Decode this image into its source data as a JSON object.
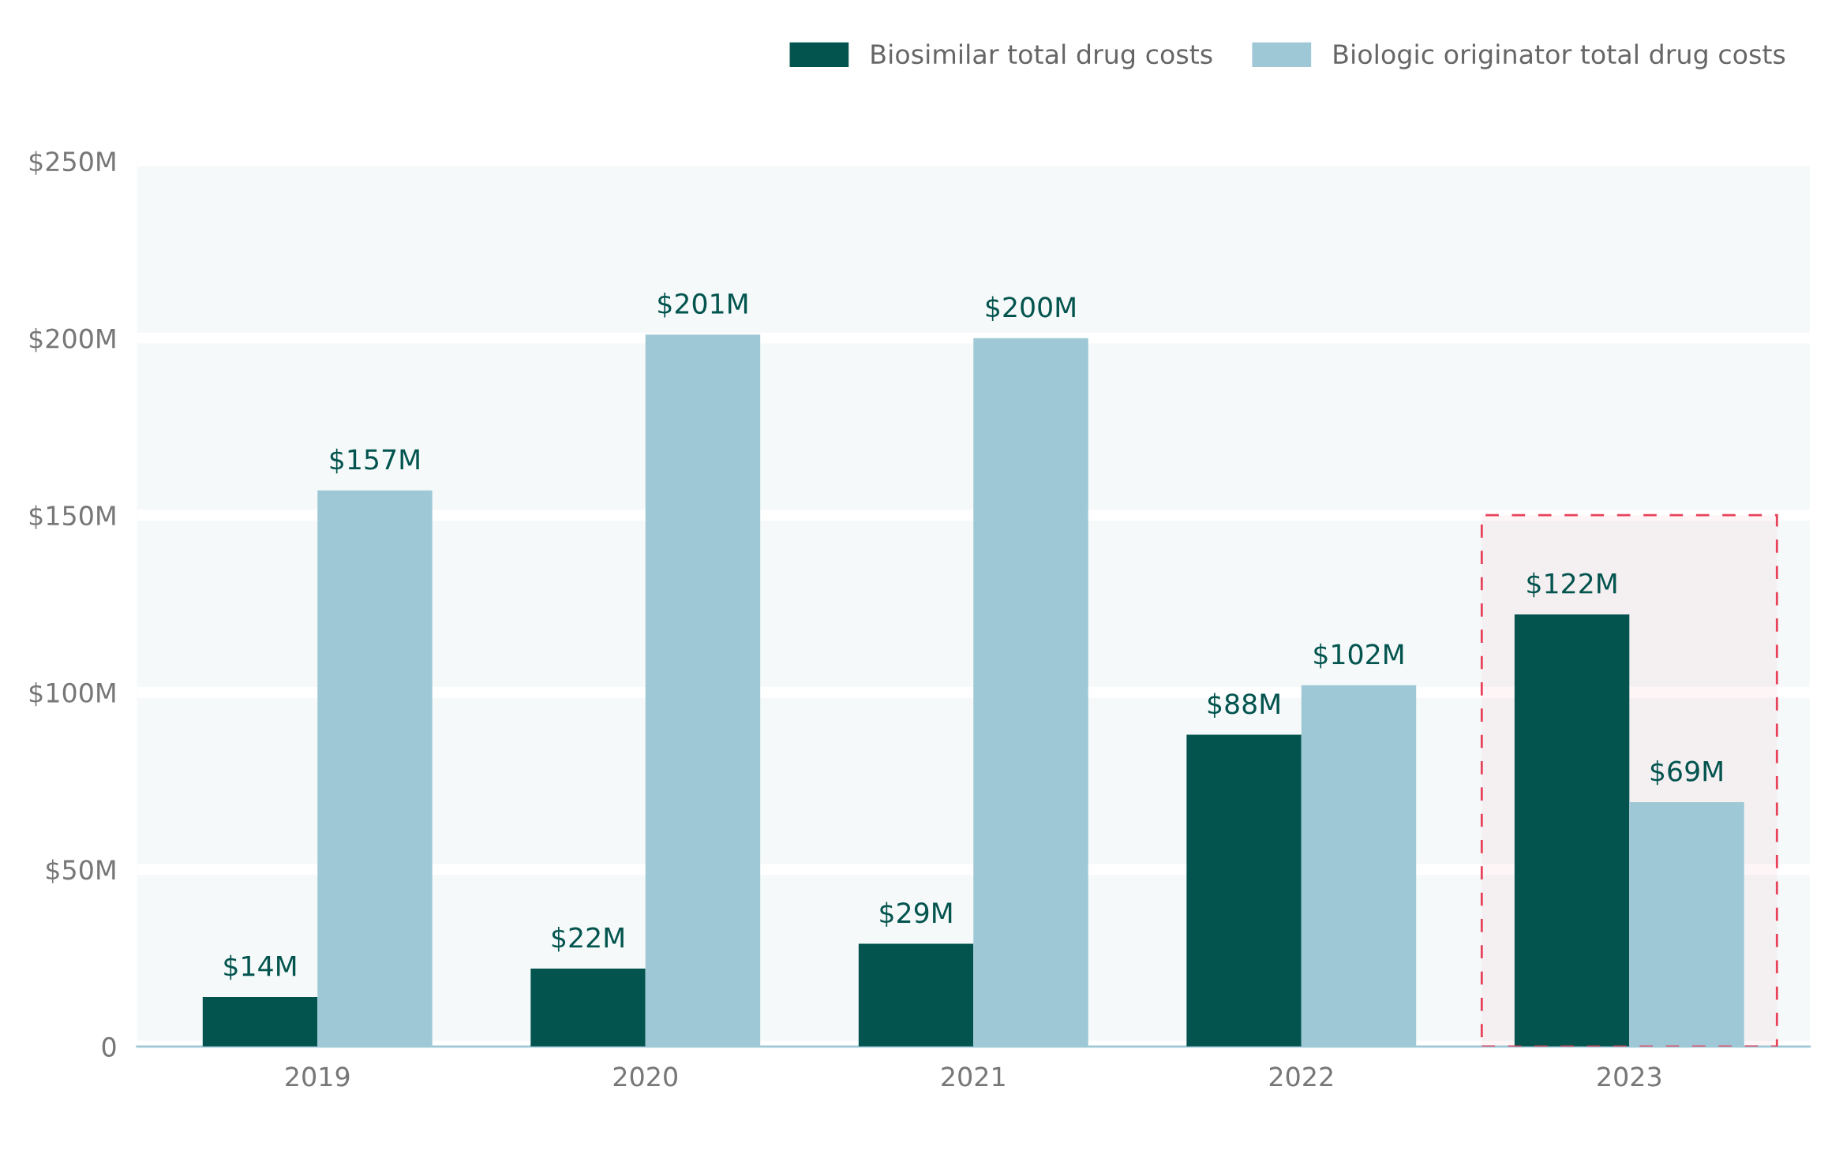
{
  "chart_data": {
    "type": "bar",
    "categories": [
      "2019",
      "2020",
      "2021",
      "2022",
      "2023"
    ],
    "series": [
      {
        "name": "Biosimilar total drug costs",
        "color": "#03544f",
        "values": [
          14,
          22,
          29,
          88,
          122
        ],
        "value_labels": [
          "$14M",
          "$22M",
          "$29M",
          "$88M",
          "$122M"
        ]
      },
      {
        "name": "Biologic originator total drug costs",
        "color": "#9ec8d6",
        "values": [
          157,
          201,
          200,
          102,
          69
        ],
        "value_labels": [
          "$157M",
          "$201M",
          "$200M",
          "$102M",
          "$69M"
        ]
      }
    ],
    "ylim": [
      0,
      250
    ],
    "yticks": [
      {
        "value": 0,
        "label": "0"
      },
      {
        "value": 50,
        "label": "$50M"
      },
      {
        "value": 100,
        "label": "$100M"
      },
      {
        "value": 150,
        "label": "$150M"
      },
      {
        "value": 200,
        "label": "$200M"
      },
      {
        "value": 250,
        "label": "$250M"
      }
    ],
    "bands": [
      {
        "axis": "x",
        "from": "2023",
        "to": "2023",
        "color": "#e8415a"
      }
    ],
    "grid": "y",
    "legend": "top right"
  }
}
